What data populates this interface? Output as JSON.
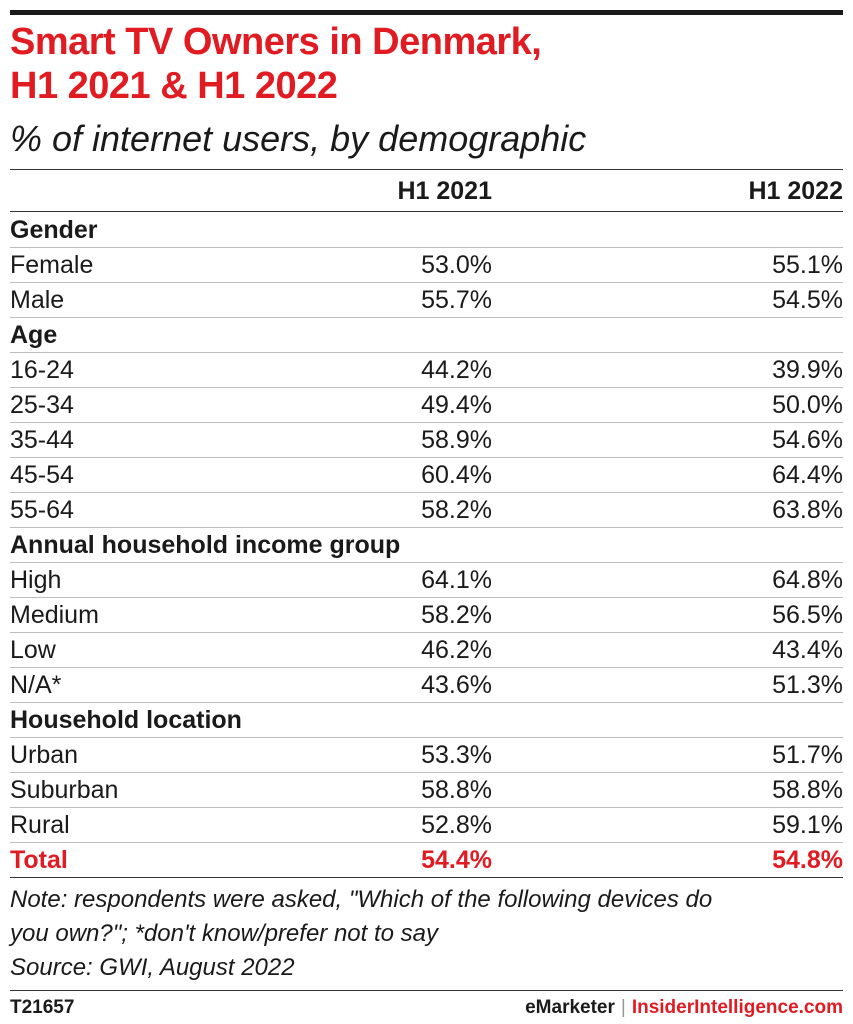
{
  "colors": {
    "accent": "#e11b22",
    "text": "#1a1a1a"
  },
  "header": {
    "title_line1": "Smart TV Owners in Denmark,",
    "title_line2": "H1 2021 & H1 2022",
    "subtitle": "% of internet users, by demographic"
  },
  "chart_data": {
    "type": "table",
    "title": "Smart TV Owners in Denmark, H1 2021 & H1 2022",
    "subtitle": "% of internet users, by demographic",
    "columns": [
      "",
      "H1 2021",
      "H1 2022"
    ],
    "rows": [
      {
        "kind": "group",
        "label": "Gender"
      },
      {
        "kind": "data",
        "label": "Female",
        "v2021": "53.0%",
        "v2022": "55.1%"
      },
      {
        "kind": "data",
        "label": "Male",
        "v2021": "55.7%",
        "v2022": "54.5%"
      },
      {
        "kind": "group",
        "label": "Age"
      },
      {
        "kind": "data",
        "label": "16-24",
        "v2021": "44.2%",
        "v2022": "39.9%"
      },
      {
        "kind": "data",
        "label": "25-34",
        "v2021": "49.4%",
        "v2022": "50.0%"
      },
      {
        "kind": "data",
        "label": "35-44",
        "v2021": "58.9%",
        "v2022": "54.6%"
      },
      {
        "kind": "data",
        "label": "45-54",
        "v2021": "60.4%",
        "v2022": "64.4%"
      },
      {
        "kind": "data",
        "label": "55-64",
        "v2021": "58.2%",
        "v2022": "63.8%"
      },
      {
        "kind": "group",
        "label": "Annual household income group"
      },
      {
        "kind": "data",
        "label": "High",
        "v2021": "64.1%",
        "v2022": "64.8%"
      },
      {
        "kind": "data",
        "label": "Medium",
        "v2021": "58.2%",
        "v2022": "56.5%"
      },
      {
        "kind": "data",
        "label": "Low",
        "v2021": "46.2%",
        "v2022": "43.4%"
      },
      {
        "kind": "data",
        "label": "N/A*",
        "v2021": "43.6%",
        "v2022": "51.3%"
      },
      {
        "kind": "group",
        "label": "Household location"
      },
      {
        "kind": "data",
        "label": "Urban",
        "v2021": "53.3%",
        "v2022": "51.7%"
      },
      {
        "kind": "data",
        "label": "Suburban",
        "v2021": "58.8%",
        "v2022": "58.8%"
      },
      {
        "kind": "data",
        "label": "Rural",
        "v2021": "52.8%",
        "v2022": "59.1%"
      },
      {
        "kind": "total",
        "label": "Total",
        "v2021": "54.4%",
        "v2022": "54.8%"
      }
    ]
  },
  "footer": {
    "note_line1": "Note: respondents were asked, \"Which of the following devices do",
    "note_line2": "you own?\"; *don't know/prefer not to say",
    "source": "Source: GWI, August 2022",
    "chart_id": "T21657",
    "brand_left": "eMarketer",
    "brand_sep": "|",
    "brand_right": "InsiderIntelligence.com"
  }
}
